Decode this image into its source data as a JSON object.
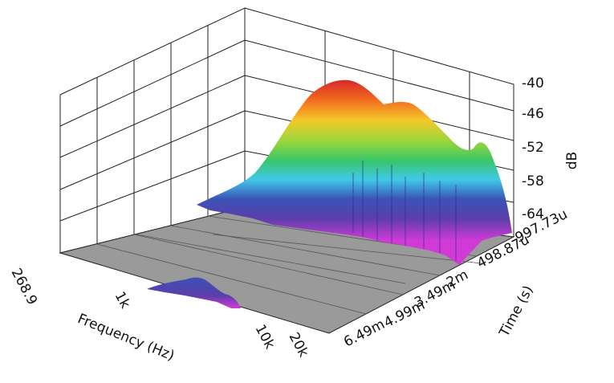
{
  "chart_data": {
    "type": "surface-3d-waterfall",
    "xlabel": "Frequency (Hz)",
    "ylabel": "Time (s)",
    "zlabel": "dB",
    "x_ticks": [
      "268.9",
      "1k",
      "10k",
      "20k"
    ],
    "y_ticks": [
      "-997.73u",
      "498.87u",
      "2m",
      "3.49m",
      "4.99m",
      "6.49m"
    ],
    "z_ticks": [
      "-40",
      "-46",
      "-52",
      "-58",
      "-64"
    ],
    "x_scale": "log",
    "zlim": [
      -70,
      -38
    ],
    "grid": true,
    "floor_color": "#9a9a9a",
    "colormap": [
      "#d42a2a",
      "#f29a1e",
      "#eedd2a",
      "#38c66a",
      "#40c8e8",
      "#3b53b6",
      "#5a3eaa",
      "#d23ad8"
    ]
  }
}
